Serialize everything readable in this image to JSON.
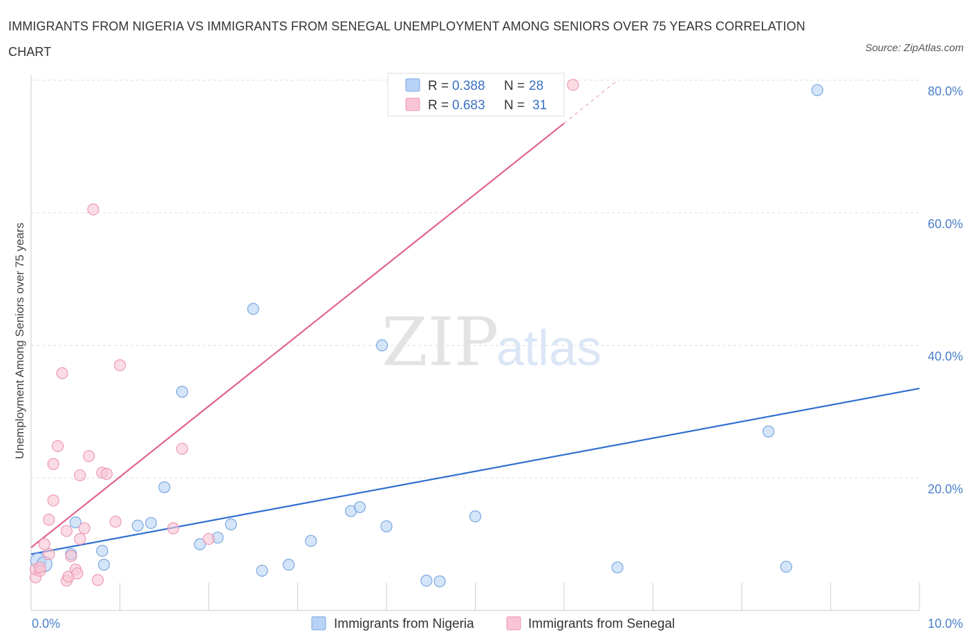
{
  "title": "IMMIGRANTS FROM NIGERIA VS IMMIGRANTS FROM SENEGAL UNEMPLOYMENT AMONG SENIORS OVER 75 YEARS CORRELATION CHART",
  "source": "Source: ZipAtlas.com",
  "watermark": {
    "zip": "ZIP",
    "atlas": "atlas"
  },
  "colors": {
    "nigeria_fill": "#b8d3f5",
    "nigeria_stroke": "#7aa6e0",
    "nigeria_line": "#2f6fd0",
    "senegal_fill": "#f9c4d4",
    "senegal_stroke": "#ec9ab4",
    "senegal_line": "#e0628e",
    "tick_label": "#4a7fc9",
    "grid": "#dddddd"
  },
  "legend": {
    "r_label": "R =",
    "n_label": "N =",
    "rows": [
      {
        "series": "nigeria",
        "r": "0.388",
        "n": "28"
      },
      {
        "series": "senegal",
        "r": "0.683",
        "n": "31"
      }
    ]
  },
  "chart_data": {
    "type": "scatter",
    "title": "IMMIGRANTS FROM NIGERIA VS IMMIGRANTS FROM SENEGAL UNEMPLOYMENT AMONG SENIORS OVER 75 YEARS CORRELATION CHART",
    "xlabel": "",
    "ylabel": "Unemployment Among Seniors over 75 years",
    "xlim": [
      0,
      10
    ],
    "ylim": [
      0,
      80
    ],
    "x_tick_labels": [
      {
        "value": 0,
        "label": "0.0%"
      },
      {
        "value": 10,
        "label": "10.0%"
      }
    ],
    "y_tick_labels": [
      {
        "value": 20,
        "label": "20.0%"
      },
      {
        "value": 40,
        "label": "40.0%"
      },
      {
        "value": 60,
        "label": "60.0%"
      },
      {
        "value": 80,
        "label": "80.0%"
      }
    ],
    "grid": true,
    "legend_position": "top-center",
    "series": [
      {
        "name": "Immigrants from Nigeria",
        "key": "nigeria",
        "r": 0.388,
        "n": 28,
        "trend": {
          "x0": 0,
          "y0": 8.5,
          "x1": 10,
          "y1": 33.5
        },
        "points": [
          {
            "x": 0.08,
            "y": 7.5,
            "big": true
          },
          {
            "x": 0.15,
            "y": 7.0,
            "big": true
          },
          {
            "x": 0.45,
            "y": 8.5
          },
          {
            "x": 0.5,
            "y": 13.3
          },
          {
            "x": 0.8,
            "y": 9.0
          },
          {
            "x": 0.82,
            "y": 6.9
          },
          {
            "x": 1.2,
            "y": 12.8
          },
          {
            "x": 1.35,
            "y": 13.2
          },
          {
            "x": 1.5,
            "y": 18.6
          },
          {
            "x": 1.7,
            "y": 33.0
          },
          {
            "x": 1.9,
            "y": 10.0
          },
          {
            "x": 2.1,
            "y": 11.0
          },
          {
            "x": 2.25,
            "y": 13.0
          },
          {
            "x": 2.5,
            "y": 45.5
          },
          {
            "x": 2.6,
            "y": 6.0
          },
          {
            "x": 2.9,
            "y": 6.9
          },
          {
            "x": 3.15,
            "y": 10.5
          },
          {
            "x": 3.6,
            "y": 15.0
          },
          {
            "x": 3.7,
            "y": 15.6
          },
          {
            "x": 3.95,
            "y": 40.0
          },
          {
            "x": 4.0,
            "y": 12.7
          },
          {
            "x": 4.45,
            "y": 4.5
          },
          {
            "x": 4.6,
            "y": 4.4
          },
          {
            "x": 5.0,
            "y": 14.2
          },
          {
            "x": 6.6,
            "y": 6.5
          },
          {
            "x": 8.3,
            "y": 27.0
          },
          {
            "x": 8.5,
            "y": 6.6
          },
          {
            "x": 8.85,
            "y": 78.5
          }
        ]
      },
      {
        "name": "Immigrants from Senegal",
        "key": "senegal",
        "r": 0.683,
        "n": 31,
        "trend": {
          "x0": 0,
          "y0": 9.5,
          "x1": 6.0,
          "y1": 73.5,
          "dash_to_x": 6.6,
          "dash_to_y": 80
        },
        "points": [
          {
            "x": 0.05,
            "y": 5.0
          },
          {
            "x": 0.05,
            "y": 6.2
          },
          {
            "x": 0.1,
            "y": 6.0
          },
          {
            "x": 0.1,
            "y": 6.5
          },
          {
            "x": 0.15,
            "y": 10.0
          },
          {
            "x": 0.2,
            "y": 13.7
          },
          {
            "x": 0.2,
            "y": 8.5
          },
          {
            "x": 0.25,
            "y": 16.6
          },
          {
            "x": 0.25,
            "y": 22.1
          },
          {
            "x": 0.3,
            "y": 24.8
          },
          {
            "x": 0.35,
            "y": 35.8
          },
          {
            "x": 0.4,
            "y": 12.0
          },
          {
            "x": 0.4,
            "y": 4.5
          },
          {
            "x": 0.42,
            "y": 5.1
          },
          {
            "x": 0.45,
            "y": 8.2
          },
          {
            "x": 0.5,
            "y": 6.2
          },
          {
            "x": 0.52,
            "y": 5.6
          },
          {
            "x": 0.55,
            "y": 20.4
          },
          {
            "x": 0.55,
            "y": 10.8
          },
          {
            "x": 0.6,
            "y": 12.4
          },
          {
            "x": 0.65,
            "y": 23.3
          },
          {
            "x": 0.7,
            "y": 60.5
          },
          {
            "x": 0.75,
            "y": 4.6
          },
          {
            "x": 0.8,
            "y": 20.8
          },
          {
            "x": 0.85,
            "y": 20.6
          },
          {
            "x": 0.95,
            "y": 13.4
          },
          {
            "x": 1.0,
            "y": 37.0
          },
          {
            "x": 1.6,
            "y": 12.4
          },
          {
            "x": 1.7,
            "y": 24.4
          },
          {
            "x": 2.0,
            "y": 10.8
          },
          {
            "x": 6.1,
            "y": 79.3
          }
        ]
      }
    ]
  },
  "bottom_legend": [
    {
      "key": "nigeria",
      "label": "Immigrants from Nigeria"
    },
    {
      "key": "senegal",
      "label": "Immigrants from Senegal"
    }
  ]
}
